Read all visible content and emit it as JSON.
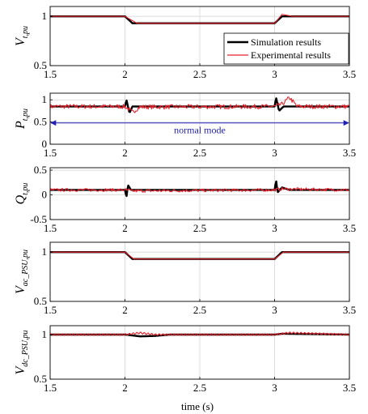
{
  "chart_data": {
    "type": "line",
    "xlabel": "time (s)",
    "xlim": [
      1.5,
      3.5
    ],
    "xticks": [
      "1.5",
      "2",
      "2.5",
      "3",
      "3.5"
    ],
    "grid": true,
    "legend": {
      "placement": "top-right of first panel",
      "entries": [
        {
          "name": "Simulation results",
          "color": "#000000"
        },
        {
          "name": "Experimental results",
          "color": "#e8202a"
        }
      ]
    },
    "panels": [
      {
        "ylabel_main": "V",
        "ylabel_sub": "t,pu",
        "ylim": [
          0.5,
          1.1
        ],
        "yticks": [
          "0.5",
          "1"
        ],
        "series": [
          {
            "name": "Simulation results",
            "x": [
              1.5,
              2.0,
              2.05,
              2.1,
              3.0,
              3.05,
              3.1,
              3.5
            ],
            "y": [
              1.0,
              1.0,
              0.93,
              0.93,
              0.93,
              1.0,
              1.0,
              1.0
            ]
          },
          {
            "name": "Experimental results",
            "x": [
              1.5,
              2.0,
              2.08,
              3.0,
              3.05,
              3.12,
              3.2,
              3.5
            ],
            "y": [
              1.0,
              1.0,
              0.93,
              0.93,
              1.02,
              1.0,
              1.0,
              1.0
            ]
          }
        ]
      },
      {
        "ylabel_main": "P",
        "ylabel_sub": "t,pu",
        "ylim": [
          0,
          1.15
        ],
        "yticks": [
          "0",
          "0.5",
          "1"
        ],
        "annotation": {
          "text": "normal mode",
          "arrow_from": 1.5,
          "arrow_to": 3.5,
          "y": 0.48
        },
        "series": [
          {
            "name": "Simulation results",
            "x": [
              1.5,
              2.0,
              2.01,
              2.03,
              2.05,
              2.1,
              3.0,
              3.01,
              3.03,
              3.06,
              3.1,
              3.5
            ],
            "y": [
              0.85,
              0.85,
              1.0,
              0.7,
              0.85,
              0.85,
              0.85,
              1.05,
              0.75,
              0.85,
              0.85,
              0.85
            ]
          },
          {
            "name": "Experimental results",
            "x": [
              1.5,
              2.0,
              2.05,
              2.1,
              3.0,
              3.05,
              3.1,
              3.15,
              3.5
            ],
            "y": [
              0.85,
              0.85,
              0.72,
              0.84,
              0.85,
              0.9,
              1.05,
              0.85,
              0.85
            ],
            "noise": 0.05
          }
        ]
      },
      {
        "ylabel_main": "Q",
        "ylabel_sub": "t,pu",
        "ylim": [
          -0.5,
          0.55
        ],
        "yticks": [
          "-0.5",
          "0",
          "0.5"
        ],
        "series": [
          {
            "name": "Simulation results",
            "x": [
              1.5,
              2.0,
              2.01,
              2.02,
              2.04,
              2.1,
              3.0,
              3.01,
              3.02,
              3.05,
              3.1,
              3.5
            ],
            "y": [
              0.1,
              0.1,
              -0.05,
              0.2,
              0.1,
              0.1,
              0.1,
              0.3,
              0.05,
              0.15,
              0.1,
              0.1
            ]
          },
          {
            "name": "Experimental results",
            "x": [
              1.5,
              2.0,
              2.05,
              3.0,
              3.05,
              3.5
            ],
            "y": [
              0.1,
              0.1,
              0.08,
              0.1,
              0.12,
              0.1
            ],
            "noise": 0.03
          }
        ]
      },
      {
        "ylabel_main": "V",
        "ylabel_sub": "ac_PSU,pu",
        "ylim": [
          0.5,
          1.1
        ],
        "yticks": [
          "0.5",
          "1"
        ],
        "series": [
          {
            "name": "Simulation results",
            "x": [
              1.5,
              2.0,
              2.05,
              3.0,
              3.05,
              3.5
            ],
            "y": [
              1.0,
              1.0,
              0.93,
              0.93,
              1.0,
              1.0
            ]
          },
          {
            "name": "Experimental results",
            "x": [
              1.5,
              2.0,
              2.06,
              3.0,
              3.06,
              3.5
            ],
            "y": [
              1.0,
              1.0,
              0.93,
              0.93,
              1.0,
              1.0
            ]
          }
        ]
      },
      {
        "ylabel_main": "V",
        "ylabel_sub": "dc_PSU,pu",
        "ylim": [
          0.5,
          1.1
        ],
        "yticks": [
          "0.5",
          "1"
        ],
        "series": [
          {
            "name": "Simulation results",
            "x": [
              1.5,
              2.0,
              2.1,
              2.2,
              2.3,
              3.0,
              3.05,
              3.5
            ],
            "y": [
              1.0,
              1.0,
              0.98,
              0.985,
              1.0,
              1.0,
              1.01,
              1.0
            ]
          },
          {
            "name": "Experimental results",
            "x": [
              1.5,
              2.0,
              2.1,
              2.2,
              3.0,
              3.1,
              3.5
            ],
            "y": [
              1.0,
              1.0,
              1.02,
              1.0,
              1.0,
              1.02,
              1.0
            ],
            "ripple": 0.01
          }
        ]
      }
    ]
  }
}
